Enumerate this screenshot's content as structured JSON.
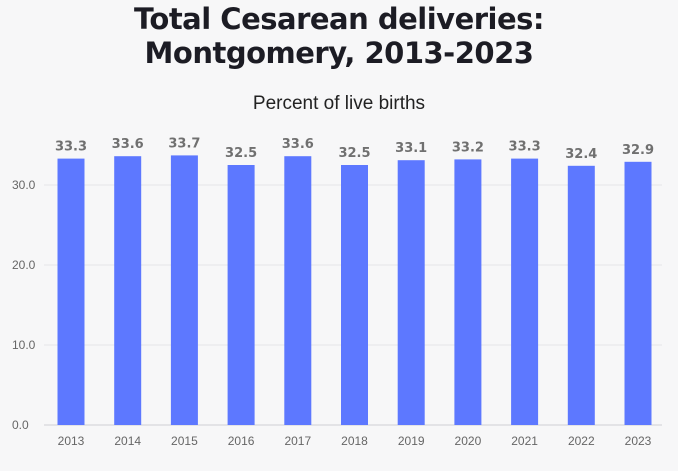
{
  "chart_data": {
    "type": "bar",
    "title_line1": "Total Cesarean deliveries:",
    "title_line2": "Montgomery, 2013-2023",
    "subtitle": "Percent of live births",
    "categories": [
      "2013",
      "2014",
      "2015",
      "2016",
      "2017",
      "2018",
      "2019",
      "2020",
      "2021",
      "2022",
      "2023"
    ],
    "values": [
      33.3,
      33.6,
      33.7,
      32.5,
      33.6,
      32.5,
      33.1,
      33.2,
      33.3,
      32.4,
      32.9
    ],
    "yticks": [
      "0.0",
      "10.0",
      "20.0",
      "30.0"
    ],
    "ylim": [
      0,
      40
    ],
    "grid": true,
    "bar_color": "#5d78ff",
    "label_color": "#707070"
  }
}
